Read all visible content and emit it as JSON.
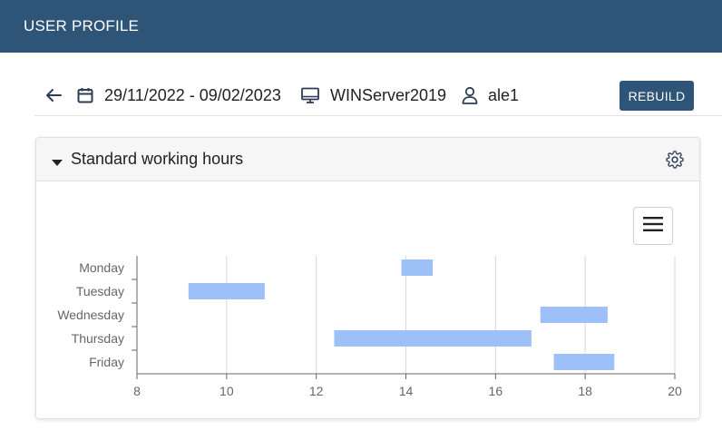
{
  "header": {
    "title": "USER PROFILE"
  },
  "toolbar": {
    "date_range": "29/11/2022 - 09/02/2023",
    "machine": "WINServer2019",
    "user": "ale1",
    "rebuild_label": "REBUILD",
    "icons": {
      "back": "arrow-left-icon",
      "calendar": "calendar-icon",
      "machine": "monitor-icon",
      "user": "user-icon"
    }
  },
  "panel": {
    "title": "Standard working hours",
    "icons": {
      "collapse": "caret-down-icon",
      "settings": "gear-icon",
      "menu": "hamburger-icon"
    }
  },
  "colors": {
    "header_bg": "#2e5478",
    "bar_fill": "#9dc0f8",
    "button_bg": "#2e5478"
  },
  "chart_data": {
    "type": "bar",
    "orientation": "horizontal-range",
    "categories": [
      "Monday",
      "Tuesday",
      "Wednesday",
      "Thursday",
      "Friday"
    ],
    "ranges": [
      {
        "day": "Monday",
        "start": 13.9,
        "end": 14.6
      },
      {
        "day": "Tuesday",
        "start": 9.15,
        "end": 10.85
      },
      {
        "day": "Wednesday",
        "start": 17.0,
        "end": 18.5
      },
      {
        "day": "Thursday",
        "start": 12.4,
        "end": 16.8
      },
      {
        "day": "Friday",
        "start": 17.3,
        "end": 18.65
      }
    ],
    "xlim": [
      8,
      20
    ],
    "xticks": [
      8,
      10,
      12,
      14,
      16,
      18,
      20
    ],
    "grid": true
  }
}
